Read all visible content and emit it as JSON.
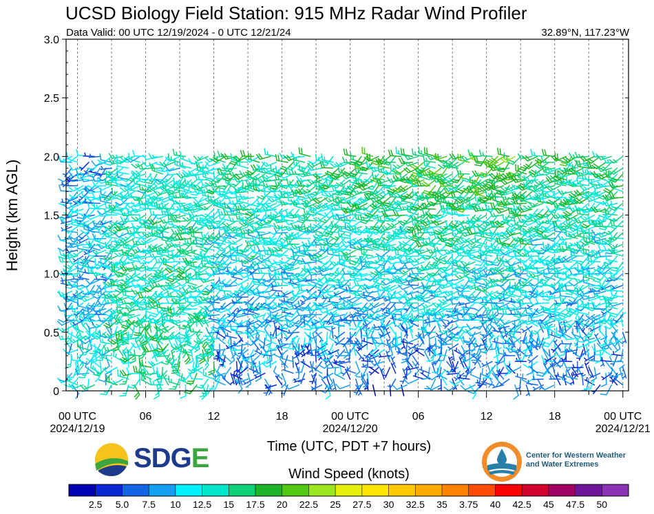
{
  "header": {
    "title": "UCSD Biology Field Station: 915 MHz Radar Wind Profiler",
    "valid": "Data Valid: 00 UTC 12/19/2024 - 0 UTC 12/21/24",
    "coords": "32.89°N, 117.23°W"
  },
  "logos": {
    "sdge_sd": "SDG",
    "sdge_ge": "E",
    "cw3e_line1": "Center for Western Weather",
    "cw3e_line2": "and Water Extremes"
  },
  "chart_data": {
    "type": "wind-barb",
    "ylabel": "Height (km AGL)",
    "xlabel": "Time (UTC, PDT +7 hours)",
    "colorbar_label": "Wind Speed (knots)",
    "ylim": [
      0,
      3.0
    ],
    "xlim_hours": [
      -1,
      48.5
    ],
    "y_ticks": [
      "0",
      "0.5",
      "1.0",
      "1.5",
      "2.0",
      "2.5",
      "3.0"
    ],
    "x_ticks": [
      {
        "hour": 0,
        "label": "00 UTC",
        "sub": "2024/12/19"
      },
      {
        "hour": 6,
        "label": "06",
        "sub": ""
      },
      {
        "hour": 12,
        "label": "12",
        "sub": ""
      },
      {
        "hour": 18,
        "label": "18",
        "sub": ""
      },
      {
        "hour": 24,
        "label": "00 UTC",
        "sub": "2024/12/20"
      },
      {
        "hour": 30,
        "label": "06",
        "sub": ""
      },
      {
        "hour": 36,
        "label": "12",
        "sub": ""
      },
      {
        "hour": 42,
        "label": "18",
        "sub": ""
      },
      {
        "hour": 48,
        "label": "00 UTC",
        "sub": "2024/12/21"
      }
    ],
    "colorbar_labels": [
      "2.5",
      "5.0",
      "7.5",
      "10",
      "12.5",
      "15",
      "17.5",
      "20",
      "22.5",
      "25",
      "27.5",
      "30",
      "32.5",
      "35",
      "3.75",
      "40",
      "42.5",
      "45",
      "47.5",
      "50"
    ],
    "colorbar_colors": [
      "#0000b4",
      "#0a28d2",
      "#1464e6",
      "#14a0f0",
      "#00f0ff",
      "#00e6c8",
      "#10d078",
      "#1eb428",
      "#50c814",
      "#9be61e",
      "#e6f00a",
      "#ffe600",
      "#ffc800",
      "#ffaa00",
      "#ff8200",
      "#ff4b00",
      "#ff0000",
      "#d2002d",
      "#a00064",
      "#6e1496",
      "#8c32b4"
    ],
    "barb_columns_hours": [
      -0.5,
      0,
      0.5,
      1,
      1.5,
      2,
      2.5,
      3,
      3.5,
      4,
      4.5,
      5,
      5.5,
      6,
      6.5,
      7,
      7.5,
      8,
      8.5,
      9,
      9.5,
      10,
      10.5,
      11,
      11.5,
      12,
      12.5,
      13,
      13.5,
      14,
      14.5,
      15,
      15.5,
      16,
      16.5,
      17,
      17.5,
      18,
      18.5,
      19,
      19.5,
      20,
      20.5,
      21,
      21.5,
      22,
      22.5,
      23,
      23.5,
      24,
      24.5,
      25,
      25.5,
      26,
      26.5,
      27,
      27.5,
      28,
      28.5,
      29,
      29.5,
      30,
      30.5,
      31,
      31.5,
      32,
      32.5,
      33,
      33.5,
      34,
      34.5,
      35,
      35.5,
      36,
      36.5,
      37,
      37.5,
      38,
      38.5,
      39,
      39.5,
      40,
      40.5,
      41,
      41.5,
      42,
      42.5,
      43,
      43.5,
      44,
      44.5,
      45,
      45.5,
      46,
      46.5,
      47,
      47.5,
      48
    ],
    "barb_levels_km": [
      0.05,
      0.1,
      0.15,
      0.2,
      0.25,
      0.3,
      0.35,
      0.4,
      0.45,
      0.5,
      0.55,
      0.6,
      0.65,
      0.7,
      0.75,
      0.8,
      0.85,
      0.9,
      0.95,
      1.0,
      1.05,
      1.1,
      1.15,
      1.2,
      1.25,
      1.3,
      1.35,
      1.4,
      1.45,
      1.5,
      1.55,
      1.6,
      1.65,
      1.7,
      1.75,
      1.8,
      1.85,
      1.9,
      1.95,
      2.0
    ],
    "speed_regimes_knots": [
      {
        "hours": [
          -0.5,
          3
        ],
        "low_km": 12,
        "high_km": 8
      },
      {
        "hours": [
          3.5,
          12
        ],
        "low_km": 15,
        "high_km": 13
      },
      {
        "hours": [
          12.5,
          24
        ],
        "low_km": 6,
        "high_km": 16
      },
      {
        "hours": [
          24.5,
          30
        ],
        "low_km": 5,
        "high_km": 18
      },
      {
        "hours": [
          30.5,
          40
        ],
        "low_km": 6,
        "high_km": 19
      },
      {
        "hours": [
          40.5,
          48
        ],
        "low_km": 6,
        "high_km": 17
      }
    ]
  }
}
